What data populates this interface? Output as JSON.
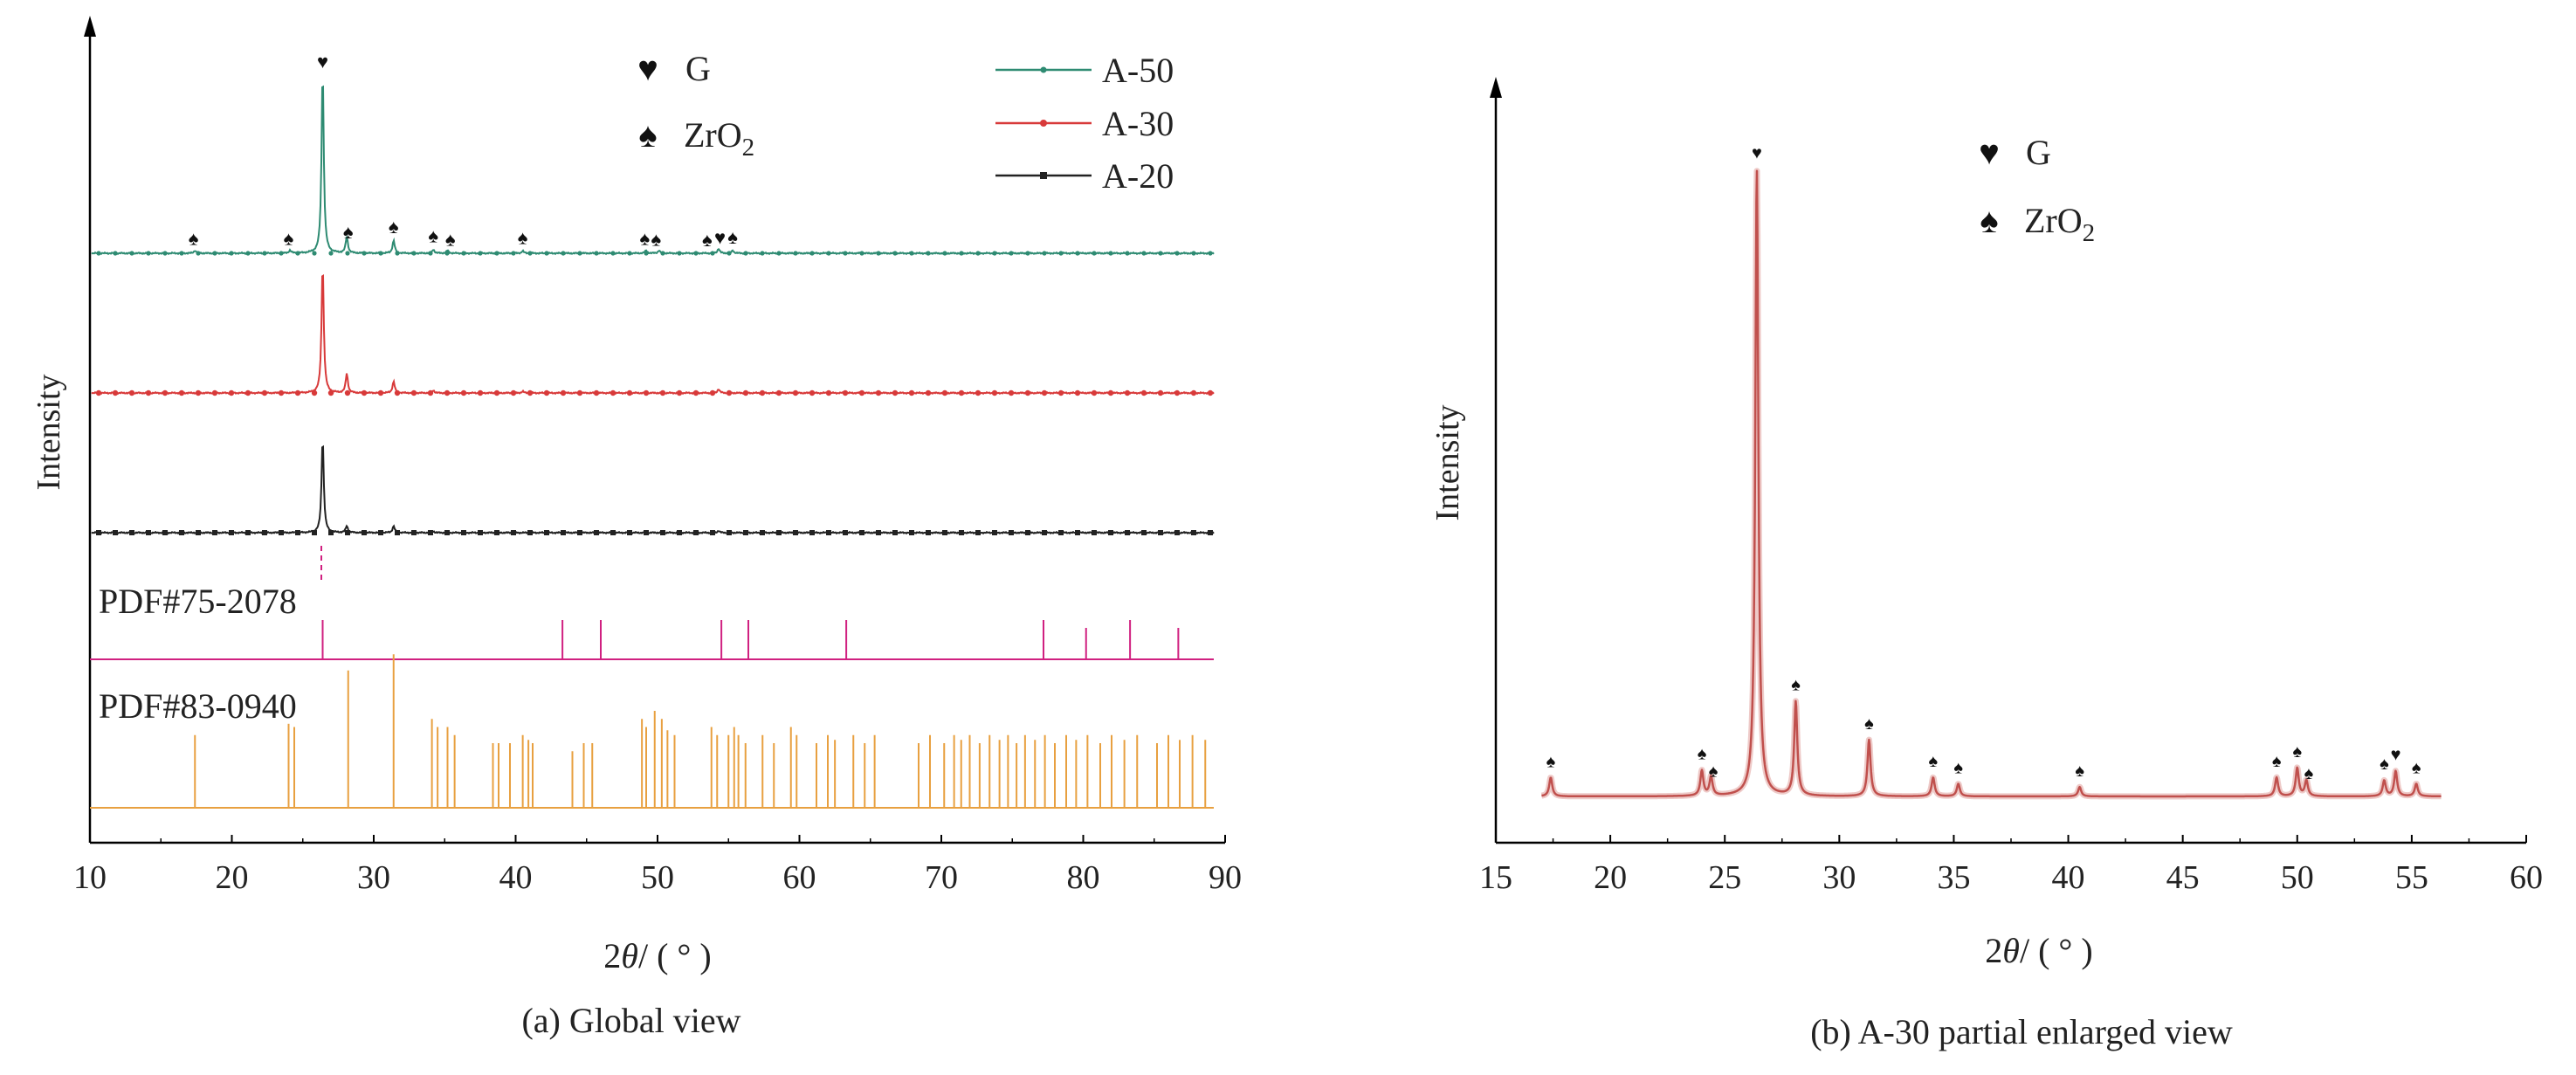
{
  "chart_data": [
    {
      "id": "a",
      "type": "line",
      "caption": "(a) Global view",
      "ylabel": "Intensity",
      "xlabel": {
        "pre": "2",
        "theta": "θ",
        "post": "/ ( ° )"
      },
      "xlim": [
        10,
        90
      ],
      "xticks": [
        10,
        20,
        30,
        40,
        50,
        60,
        70,
        80,
        90
      ],
      "marker_legend": [
        {
          "symbol": "♥",
          "label": "G"
        },
        {
          "symbol": "♠",
          "label": "ZrO",
          "sub": "2"
        }
      ],
      "series": [
        {
          "name": "A-50",
          "color": "#2e8b72",
          "peaks": [
            [
              26.4,
              1.0
            ],
            [
              28.1,
              0.09
            ],
            [
              31.4,
              0.07
            ],
            [
              17.4,
              0.015
            ],
            [
              24.1,
              0.015
            ],
            [
              34.2,
              0.02
            ],
            [
              35.2,
              0.015
            ],
            [
              40.5,
              0.012
            ],
            [
              49.2,
              0.015
            ],
            [
              50.1,
              0.015
            ],
            [
              54.3,
              0.025
            ],
            [
              55.3,
              0.015
            ]
          ]
        },
        {
          "name": "A-30",
          "color": "#d83a3a",
          "peaks": [
            [
              26.4,
              1.0
            ],
            [
              28.1,
              0.15
            ],
            [
              31.4,
              0.09
            ],
            [
              34.2,
              0.02
            ],
            [
              40.5,
              0.012
            ],
            [
              54.3,
              0.03
            ]
          ]
        },
        {
          "name": "A-20",
          "color": "#222222",
          "peaks": [
            [
              26.4,
              1.0
            ],
            [
              28.1,
              0.07
            ],
            [
              31.4,
              0.07
            ],
            [
              34.2,
              0.015
            ],
            [
              54.3,
              0.02
            ]
          ]
        }
      ],
      "peak_markers": [
        {
          "symbol": "♥",
          "x": 26.4
        },
        {
          "symbol": "♠",
          "x": 17.3
        },
        {
          "symbol": "♠",
          "x": 24.0
        },
        {
          "symbol": "♠",
          "x": 28.2
        },
        {
          "symbol": "♠",
          "x": 31.4
        },
        {
          "symbol": "♠",
          "x": 34.2
        },
        {
          "symbol": "♠",
          "x": 35.4
        },
        {
          "symbol": "♠",
          "x": 40.5
        },
        {
          "symbol": "♠",
          "x": 49.1
        },
        {
          "symbol": "♠",
          "x": 49.9
        },
        {
          "symbol": "♠",
          "x": 53.5
        },
        {
          "symbol": "♥",
          "x": 54.4
        },
        {
          "symbol": "♠",
          "x": 55.3
        }
      ],
      "reference_patterns": [
        {
          "name": "PDF#75-2078",
          "color": "#d02080",
          "lines": [
            [
              26.4,
              0.5
            ],
            [
              43.3,
              0.5
            ],
            [
              46.0,
              0.5
            ],
            [
              54.5,
              0.5
            ],
            [
              56.4,
              0.5
            ],
            [
              63.3,
              0.5
            ],
            [
              77.2,
              0.5
            ],
            [
              80.2,
              0.4
            ],
            [
              83.3,
              0.5
            ],
            [
              86.7,
              0.4
            ]
          ]
        },
        {
          "name": "PDF#83-0940",
          "color": "#e8a040",
          "lines": [
            [
              17.4,
              0.45
            ],
            [
              24.0,
              0.52
            ],
            [
              24.4,
              0.5
            ],
            [
              28.2,
              0.85
            ],
            [
              31.4,
              0.95
            ],
            [
              34.1,
              0.55
            ],
            [
              34.5,
              0.5
            ],
            [
              35.2,
              0.5
            ],
            [
              35.7,
              0.45
            ],
            [
              38.4,
              0.4
            ],
            [
              38.8,
              0.4
            ],
            [
              39.6,
              0.4
            ],
            [
              40.5,
              0.45
            ],
            [
              40.9,
              0.42
            ],
            [
              41.2,
              0.4
            ],
            [
              44.0,
              0.35
            ],
            [
              44.8,
              0.4
            ],
            [
              45.4,
              0.4
            ],
            [
              48.9,
              0.55
            ],
            [
              49.2,
              0.5
            ],
            [
              49.8,
              0.6
            ],
            [
              50.3,
              0.55
            ],
            [
              50.7,
              0.48
            ],
            [
              51.2,
              0.45
            ],
            [
              53.8,
              0.5
            ],
            [
              54.2,
              0.45
            ],
            [
              55.0,
              0.45
            ],
            [
              55.4,
              0.5
            ],
            [
              55.7,
              0.45
            ],
            [
              56.2,
              0.4
            ],
            [
              57.4,
              0.45
            ],
            [
              58.2,
              0.4
            ],
            [
              59.4,
              0.5
            ],
            [
              59.8,
              0.45
            ],
            [
              61.2,
              0.4
            ],
            [
              62.0,
              0.45
            ],
            [
              62.5,
              0.42
            ],
            [
              63.8,
              0.45
            ],
            [
              64.6,
              0.4
            ],
            [
              65.3,
              0.45
            ],
            [
              68.4,
              0.4
            ],
            [
              69.2,
              0.45
            ],
            [
              70.2,
              0.4
            ],
            [
              70.9,
              0.45
            ],
            [
              71.4,
              0.42
            ],
            [
              72.0,
              0.45
            ],
            [
              72.7,
              0.4
            ],
            [
              73.4,
              0.45
            ],
            [
              74.1,
              0.42
            ],
            [
              74.7,
              0.45
            ],
            [
              75.3,
              0.4
            ],
            [
              75.9,
              0.45
            ],
            [
              76.6,
              0.42
            ],
            [
              77.3,
              0.45
            ],
            [
              78.0,
              0.4
            ],
            [
              78.8,
              0.45
            ],
            [
              79.5,
              0.42
            ],
            [
              80.3,
              0.45
            ],
            [
              81.2,
              0.4
            ],
            [
              82.0,
              0.45
            ],
            [
              82.9,
              0.42
            ],
            [
              83.8,
              0.45
            ],
            [
              85.2,
              0.4
            ],
            [
              86.0,
              0.45
            ],
            [
              86.8,
              0.42
            ],
            [
              87.7,
              0.45
            ],
            [
              88.6,
              0.42
            ]
          ]
        }
      ]
    },
    {
      "id": "b",
      "type": "line",
      "caption": "(b) A-30 partial enlarged view",
      "ylabel": "Intensity",
      "xlabel": {
        "pre": "2",
        "theta": "θ",
        "post": "/ ( ° )"
      },
      "xlim": [
        15,
        60
      ],
      "data_range": [
        17,
        56.3
      ],
      "xticks": [
        15,
        20,
        25,
        30,
        35,
        40,
        45,
        50,
        55,
        60
      ],
      "marker_legend": [
        {
          "symbol": "♥",
          "label": "G"
        },
        {
          "symbol": "♠",
          "label": "ZrO",
          "sub": "2"
        }
      ],
      "series": [
        {
          "name": "A-30",
          "color": "#c0504d",
          "peaks": [
            [
              17.4,
              0.03
            ],
            [
              24.0,
              0.04
            ],
            [
              24.4,
              0.03
            ],
            [
              26.4,
              1.0
            ],
            [
              28.1,
              0.15
            ],
            [
              31.3,
              0.09
            ],
            [
              34.1,
              0.03
            ],
            [
              35.2,
              0.02
            ],
            [
              40.5,
              0.015
            ],
            [
              49.1,
              0.03
            ],
            [
              50.0,
              0.045
            ],
            [
              50.4,
              0.025
            ],
            [
              53.8,
              0.025
            ],
            [
              54.3,
              0.04
            ],
            [
              55.2,
              0.02
            ]
          ]
        }
      ],
      "peak_markers": [
        {
          "symbol": "♠",
          "x": 17.4
        },
        {
          "symbol": "♠",
          "x": 24.0
        },
        {
          "symbol": "♠",
          "x": 24.5
        },
        {
          "symbol": "♥",
          "x": 26.4
        },
        {
          "symbol": "♠",
          "x": 28.1
        },
        {
          "symbol": "♠",
          "x": 31.3
        },
        {
          "symbol": "♠",
          "x": 34.1
        },
        {
          "symbol": "♠",
          "x": 35.2
        },
        {
          "symbol": "♠",
          "x": 40.5
        },
        {
          "symbol": "♠",
          "x": 49.1
        },
        {
          "symbol": "♠",
          "x": 50.0
        },
        {
          "symbol": "♠",
          "x": 50.5
        },
        {
          "symbol": "♠",
          "x": 53.8
        },
        {
          "symbol": "♥",
          "x": 54.3
        },
        {
          "symbol": "♠",
          "x": 55.2
        }
      ]
    }
  ]
}
